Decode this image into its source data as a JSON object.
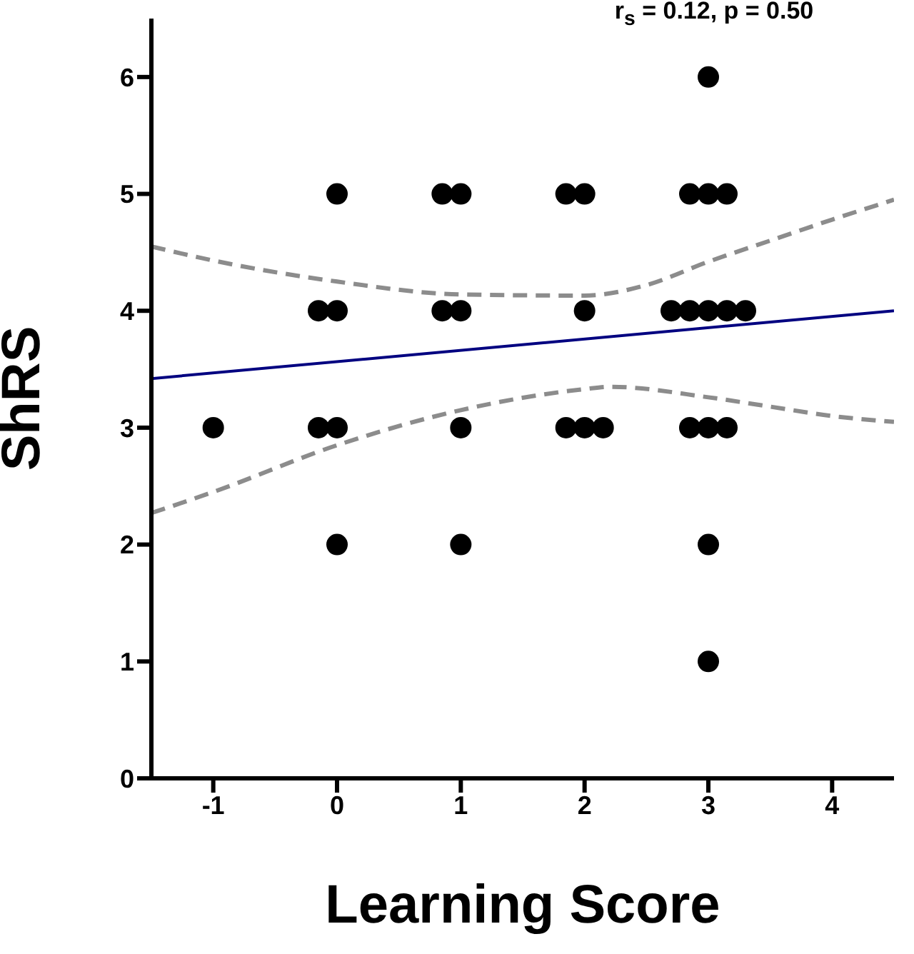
{
  "chart_data": {
    "type": "scatter",
    "xlabel": "Learning Score",
    "ylabel": "ShRS",
    "annotations": [
      "r$_{s}$ = 0.12, p = 0.50"
    ],
    "xlim": [
      -1.5,
      4.5
    ],
    "xticks": [
      -1,
      0,
      1,
      2,
      3,
      4
    ],
    "ylim": [
      0,
      6.5
    ],
    "yticks": [
      0,
      1,
      2,
      3,
      4,
      5,
      6
    ],
    "grid": false,
    "legend": false,
    "series": [
      {
        "color": "#000000",
        "marker": "circle",
        "x": [
          3,
          0,
          0.85,
          1,
          1.85,
          2,
          2.85,
          3,
          3.15,
          -0.15,
          0,
          0.85,
          1,
          2,
          2.7,
          2.85,
          3,
          3.15,
          3.3,
          -1,
          -0.15,
          0,
          1,
          1.85,
          2,
          2.15,
          2.85,
          3,
          3.15,
          0,
          1,
          3,
          3
        ],
        "values": [
          6,
          5,
          5,
          5,
          5,
          5,
          5,
          5,
          5,
          4,
          4,
          4,
          4,
          4,
          4,
          4,
          4,
          4,
          4,
          3,
          3,
          3,
          3,
          3,
          3,
          3,
          3,
          3,
          3,
          2,
          2,
          2,
          1
        ]
      },
      {
        "type": "line",
        "color": "#000080",
        "marker": "none",
        "line_style": "solid",
        "x": [
          -1.5,
          4.5
        ],
        "values": [
          3.42,
          4.0
        ]
      },
      {
        "type": "line",
        "color": "#8c8c8c",
        "marker": "none",
        "line_style": "dashed",
        "x": [
          -1.5,
          -1,
          0,
          1,
          2,
          2.5,
          3,
          3.5,
          4,
          4.5
        ],
        "values": [
          4.55,
          4.43,
          4.25,
          4.14,
          4.13,
          4.22,
          4.42,
          4.6,
          4.78,
          4.95
        ]
      },
      {
        "type": "line",
        "color": "#8c8c8c",
        "marker": "none",
        "line_style": "dashed",
        "x": [
          -1.5,
          -1,
          0,
          1,
          2,
          2.2,
          3,
          3.5,
          4,
          4.5
        ],
        "values": [
          2.27,
          2.45,
          2.85,
          3.15,
          3.33,
          3.35,
          3.26,
          3.18,
          3.1,
          3.05
        ]
      }
    ]
  }
}
